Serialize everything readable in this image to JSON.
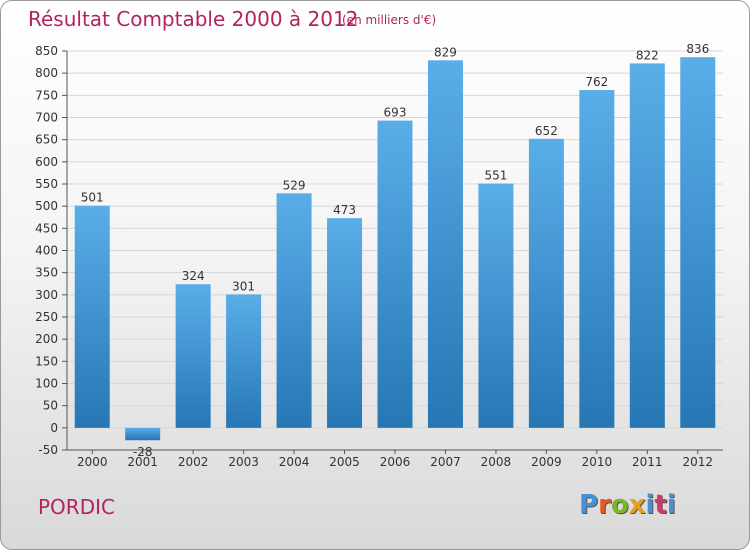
{
  "header": {
    "title": "Résultat Comptable 2000 à 2012",
    "subtitle": "(en milliers d'€)"
  },
  "footer": {
    "place": "PORDIC",
    "logo_letters": [
      "P",
      "r",
      "o",
      "x",
      "i",
      "t",
      "i"
    ]
  },
  "colors": {
    "title": "#b2235f",
    "bar_light": "#5aaee8",
    "bar_dark": "#2677b4",
    "grid": "#d7d7d7"
  },
  "chart_data": {
    "type": "bar",
    "title": "Résultat Comptable 2000 à 2012",
    "subtitle": "(en milliers d'€)",
    "xlabel": "",
    "ylabel": "",
    "ylim": [
      -50,
      850
    ],
    "yticks": [
      -50,
      0,
      50,
      100,
      150,
      200,
      250,
      300,
      350,
      400,
      450,
      500,
      550,
      600,
      650,
      700,
      750,
      800,
      850
    ],
    "grid": true,
    "categories": [
      "2000",
      "2001",
      "2002",
      "2003",
      "2004",
      "2005",
      "2006",
      "2007",
      "2008",
      "2009",
      "2010",
      "2011",
      "2012"
    ],
    "values": [
      501,
      -28,
      324,
      301,
      529,
      473,
      693,
      829,
      551,
      652,
      762,
      822,
      836
    ],
    "value_labels": [
      "501",
      "-28",
      "324",
      "301",
      "529",
      "473",
      "693",
      "829",
      "551",
      "652",
      "762",
      "822",
      "836"
    ]
  }
}
